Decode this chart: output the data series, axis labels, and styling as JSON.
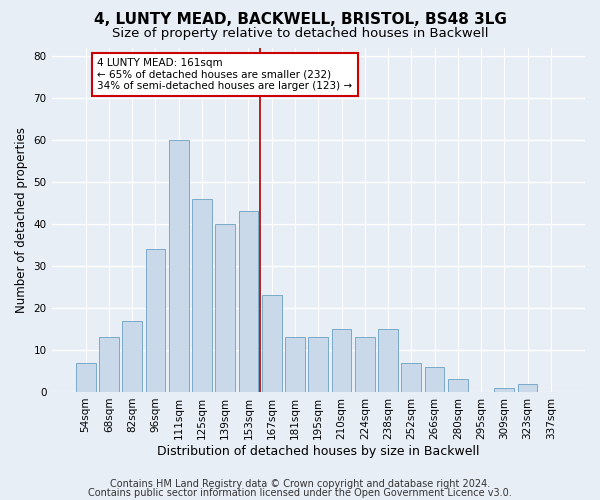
{
  "title": "4, LUNTY MEAD, BACKWELL, BRISTOL, BS48 3LG",
  "subtitle": "Size of property relative to detached houses in Backwell",
  "xlabel": "Distribution of detached houses by size in Backwell",
  "ylabel": "Number of detached properties",
  "bar_color": "#c9d9ea",
  "bar_edge_color": "#7aaac8",
  "background_color": "#e8eef6",
  "grid_color": "#ffffff",
  "categories": [
    "54sqm",
    "68sqm",
    "82sqm",
    "96sqm",
    "111sqm",
    "125sqm",
    "139sqm",
    "153sqm",
    "167sqm",
    "181sqm",
    "195sqm",
    "210sqm",
    "224sqm",
    "238sqm",
    "252sqm",
    "266sqm",
    "280sqm",
    "295sqm",
    "309sqm",
    "323sqm",
    "337sqm"
  ],
  "values": [
    7,
    13,
    17,
    34,
    60,
    46,
    40,
    43,
    23,
    13,
    13,
    15,
    13,
    15,
    7,
    6,
    3,
    0,
    1,
    2,
    0
  ],
  "ylim": [
    0,
    82
  ],
  "yticks": [
    0,
    10,
    20,
    30,
    40,
    50,
    60,
    70,
    80
  ],
  "vline_color": "#aa0000",
  "annotation_text": "4 LUNTY MEAD: 161sqm\n← 65% of detached houses are smaller (232)\n34% of semi-detached houses are larger (123) →",
  "annotation_box_color": "#ffffff",
  "annotation_box_edge": "#cc0000",
  "footer_line1": "Contains HM Land Registry data © Crown copyright and database right 2024.",
  "footer_line2": "Contains public sector information licensed under the Open Government Licence v3.0.",
  "title_fontsize": 11,
  "subtitle_fontsize": 9.5,
  "xlabel_fontsize": 9,
  "ylabel_fontsize": 8.5,
  "tick_fontsize": 7.5,
  "annotation_fontsize": 7.5,
  "footer_fontsize": 7
}
